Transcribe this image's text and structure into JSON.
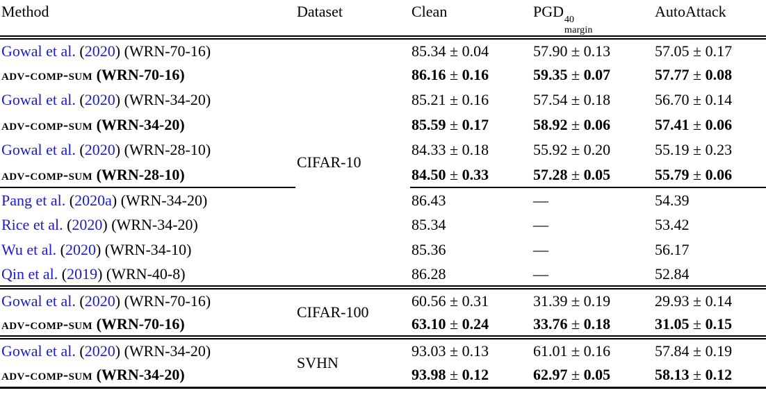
{
  "colors": {
    "citation_blue": "#1b1bcd",
    "text": "#000000"
  },
  "header": {
    "method": "Method",
    "dataset": "Dataset",
    "clean": "Clean",
    "pgd_base": "PGD",
    "pgd_sup": "40",
    "pgd_sub": "margin",
    "autoattack": "AutoAttack"
  },
  "sections": [
    {
      "dataset": "CIFAR-10",
      "rows": [
        {
          "author": "Gowal et al.",
          "year": "2020",
          "model": "(WRN-70-16)",
          "bold": false,
          "clean": "85.34 ± 0.04",
          "pgd": "57.90 ± 0.13",
          "autoattack": "57.05 ± 0.17"
        },
        {
          "name": "adv-comp-sum",
          "model": "(WRN-70-16)",
          "bold": true,
          "clean": "86.16 ± 0.16",
          "pgd": "59.35 ± 0.07",
          "autoattack": "57.77 ± 0.08"
        },
        {
          "author": "Gowal et al.",
          "year": "2020",
          "model": "(WRN-34-20)",
          "bold": false,
          "clean": "85.21 ± 0.16",
          "pgd": "57.54 ± 0.18",
          "autoattack": "56.70 ± 0.14"
        },
        {
          "name": "adv-comp-sum",
          "model": "(WRN-34-20)",
          "bold": true,
          "clean": "85.59 ± 0.17",
          "pgd": "58.92 ± 0.06",
          "autoattack": "57.41 ± 0.06"
        },
        {
          "author": "Gowal et al.",
          "year": "2020",
          "model": "(WRN-28-10)",
          "bold": false,
          "clean": "84.33 ± 0.18",
          "pgd": "55.92 ± 0.20",
          "autoattack": "55.19 ± 0.23"
        },
        {
          "name": "adv-comp-sum",
          "model": "(WRN-28-10)",
          "bold": true,
          "clean": "84.50 ± 0.33",
          "pgd": "57.28 ± 0.05",
          "autoattack": "55.79 ± 0.06",
          "rule_after": true
        },
        {
          "author": "Pang et al.",
          "year": "2020a",
          "model": "(WRN-34-20)",
          "bold": false,
          "clean": "86.43",
          "pgd": "—",
          "autoattack": "54.39"
        },
        {
          "author": "Rice et al.",
          "year": "2020",
          "model": "(WRN-34-20)",
          "bold": false,
          "clean": "85.34",
          "pgd": "—",
          "autoattack": "53.42"
        },
        {
          "author": "Wu et al.",
          "year": "2020",
          "model": "(WRN-34-10)",
          "bold": false,
          "clean": "85.36",
          "pgd": "—",
          "autoattack": "56.17"
        },
        {
          "author": "Qin et al.",
          "year": "2019",
          "model": "(WRN-40-8)",
          "bold": false,
          "clean": "86.28",
          "pgd": "—",
          "autoattack": "52.84"
        }
      ]
    },
    {
      "dataset": "CIFAR-100",
      "rows": [
        {
          "author": "Gowal et al.",
          "year": "2020",
          "model": "(WRN-70-16)",
          "bold": false,
          "clean": "60.56 ± 0.31",
          "pgd": "31.39 ± 0.19",
          "autoattack": "29.93 ± 0.14"
        },
        {
          "name": "adv-comp-sum",
          "model": "(WRN-70-16)",
          "bold": true,
          "clean": "63.10 ± 0.24",
          "pgd": "33.76 ± 0.18",
          "autoattack": "31.05 ± 0.15"
        }
      ]
    },
    {
      "dataset": "SVHN",
      "rows": [
        {
          "author": "Gowal et al.",
          "year": "2020",
          "model": "(WRN-34-20)",
          "bold": false,
          "clean": "93.03 ± 0.13",
          "pgd": "61.01 ± 0.16",
          "autoattack": "57.84 ± 0.19"
        },
        {
          "name": "adv-comp-sum",
          "model": "(WRN-34-20)",
          "bold": true,
          "clean": "93.98 ± 0.12",
          "pgd": "62.97 ± 0.05",
          "autoattack": "58.13 ± 0.12"
        }
      ]
    }
  ]
}
